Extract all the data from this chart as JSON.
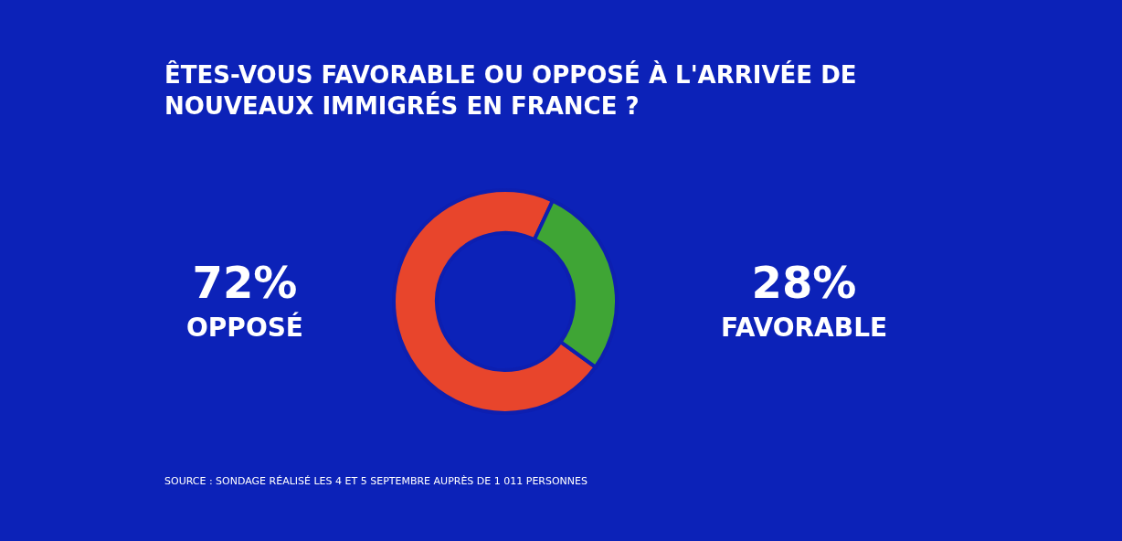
{
  "chart_data": {
    "type": "donut",
    "title": [
      "ÊTES-VOUS FAVORABLE OU OPPOSÉ À L'ARRIVÉE DE",
      "NOUVEAUX IMMIGRÉS EN FRANCE ?"
    ],
    "categories": [
      "OPPOSÉ",
      "FAVORABLE"
    ],
    "values": [
      72,
      28
    ],
    "value_labels": [
      "72%",
      "28%"
    ],
    "colors": [
      "#e8452c",
      "#3fa535"
    ],
    "legend": false,
    "annotations": [
      "SOURCE : SONDAGE RÉALISÉ LES 4 ET 5 SEPTEMBRE AUPRÈS DE 1 011 PERSONNES"
    ]
  }
}
